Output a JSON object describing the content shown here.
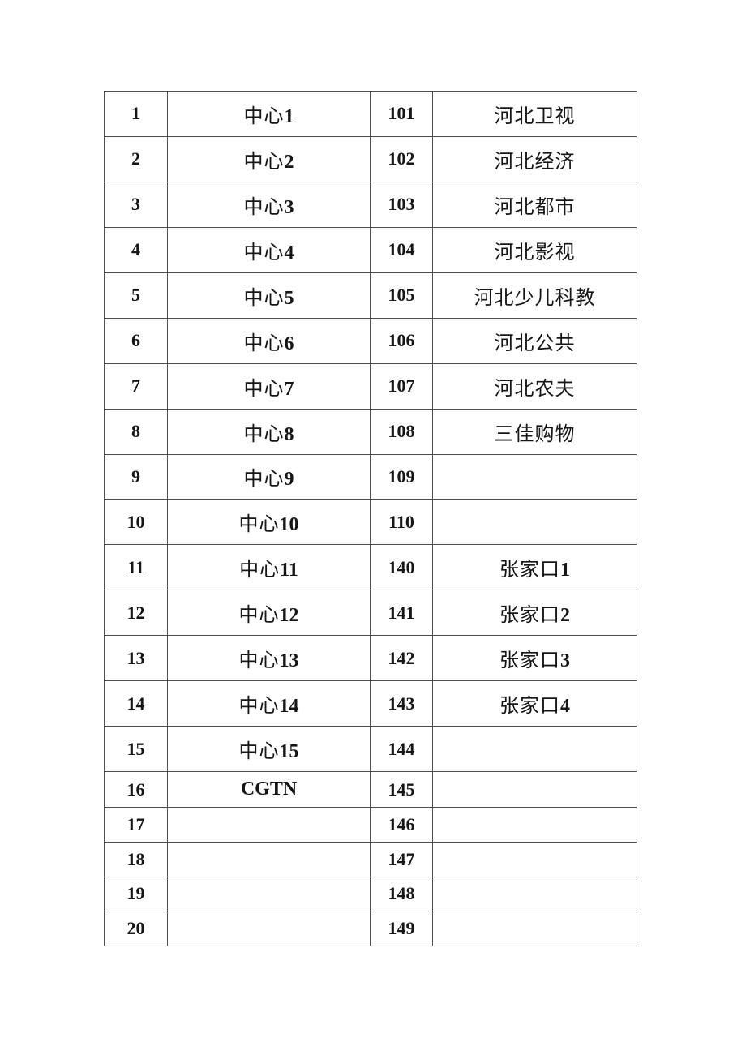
{
  "page": {
    "background_color": "#ffffff",
    "text_color": "#161616",
    "border_color": "#4e4e4e"
  },
  "table": {
    "columns": [
      "channel-number",
      "channel-name",
      "channel-number",
      "channel-name"
    ],
    "rows": [
      {
        "no1": "1",
        "name1": "中心1",
        "no2": "101",
        "name2": "河北卫视"
      },
      {
        "no1": "2",
        "name1": "中心2",
        "no2": "102",
        "name2": "河北经济"
      },
      {
        "no1": "3",
        "name1": "中心3",
        "no2": "103",
        "name2": "河北都市"
      },
      {
        "no1": "4",
        "name1": "中心4",
        "no2": "104",
        "name2": "河北影视"
      },
      {
        "no1": "5",
        "name1": "中心5",
        "no2": "105",
        "name2": "河北少儿科教"
      },
      {
        "no1": "6",
        "name1": "中心6",
        "no2": "106",
        "name2": "河北公共"
      },
      {
        "no1": "7",
        "name1": "中心7",
        "no2": "107",
        "name2": "河北农夫"
      },
      {
        "no1": "8",
        "name1": "中心8",
        "no2": "108",
        "name2": "三佳购物"
      },
      {
        "no1": "9",
        "name1": "中心9",
        "no2": "109",
        "name2": ""
      },
      {
        "no1": "10",
        "name1": "中心10",
        "no2": "110",
        "name2": ""
      },
      {
        "no1": "11",
        "name1": "中心11",
        "no2": "140",
        "name2": "张家口1"
      },
      {
        "no1": "12",
        "name1": "中心12",
        "no2": "141",
        "name2": "张家口2"
      },
      {
        "no1": "13",
        "name1": "中心13",
        "no2": "142",
        "name2": "张家口3"
      },
      {
        "no1": "14",
        "name1": "中心14",
        "no2": "143",
        "name2": "张家口4"
      },
      {
        "no1": "15",
        "name1": "中心15",
        "no2": "144",
        "name2": ""
      },
      {
        "no1": "16",
        "name1": "CGTN",
        "no2": "145",
        "name2": ""
      },
      {
        "no1": "17",
        "name1": "",
        "no2": "146",
        "name2": ""
      },
      {
        "no1": "18",
        "name1": "",
        "no2": "147",
        "name2": ""
      },
      {
        "no1": "19",
        "name1": "",
        "no2": "148",
        "name2": ""
      },
      {
        "no1": "20",
        "name1": "",
        "no2": "149",
        "name2": ""
      }
    ]
  }
}
